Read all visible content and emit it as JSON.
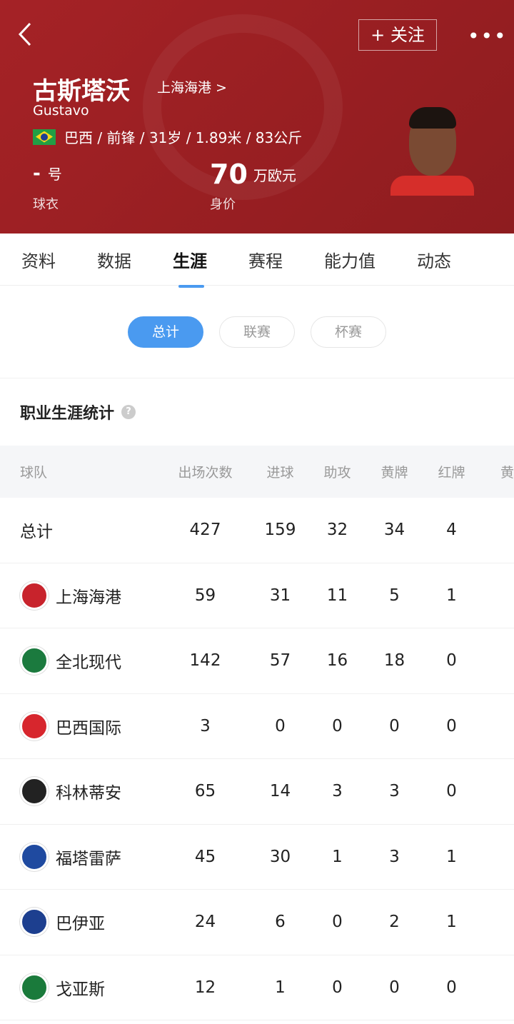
{
  "header": {
    "follow_label": "+ 关注",
    "more": "•••",
    "name": "古斯塔沃",
    "club": "上海海港 >",
    "name_en": "Gustavo",
    "info": "巴西 / 前锋 / 31岁 / 1.89米 / 83公斤",
    "nationality_flag": "brazil-flag",
    "shirt_number": "-",
    "shirt_unit": "号",
    "shirt_label": "球衣",
    "value": "70",
    "value_unit": "万欧元",
    "value_label": "身价",
    "bg_color": "#9c1f22"
  },
  "tabs": [
    {
      "label": "资料"
    },
    {
      "label": "数据"
    },
    {
      "label": "生涯",
      "active": true
    },
    {
      "label": "赛程"
    },
    {
      "label": "能力值"
    },
    {
      "label": "动态"
    }
  ],
  "filters": [
    {
      "label": "总计",
      "active": true
    },
    {
      "label": "联赛"
    },
    {
      "label": "杯赛"
    }
  ],
  "section_title": "职业生涯统计",
  "table": {
    "headers": [
      "球队",
      "出场次数",
      "进球",
      "助攻",
      "黄牌",
      "红牌",
      "黄"
    ],
    "rows": [
      {
        "team": "总计",
        "apps": "427",
        "goals": "159",
        "assists": "32",
        "yellow": "34",
        "red": "4"
      },
      {
        "team": "上海海港",
        "apps": "59",
        "goals": "31",
        "assists": "11",
        "yellow": "5",
        "red": "1",
        "color": "#c8232c"
      },
      {
        "team": "全北现代",
        "apps": "142",
        "goals": "57",
        "assists": "16",
        "yellow": "18",
        "red": "0",
        "color": "#1b7a3e"
      },
      {
        "team": "巴西国际",
        "apps": "3",
        "goals": "0",
        "assists": "0",
        "yellow": "0",
        "red": "0",
        "color": "#d7262d"
      },
      {
        "team": "科林蒂安",
        "apps": "65",
        "goals": "14",
        "assists": "3",
        "yellow": "3",
        "red": "0",
        "color": "#222222"
      },
      {
        "team": "福塔雷萨",
        "apps": "45",
        "goals": "30",
        "assists": "1",
        "yellow": "3",
        "red": "1",
        "color": "#1f4aa0"
      },
      {
        "team": "巴伊亚",
        "apps": "24",
        "goals": "6",
        "assists": "0",
        "yellow": "2",
        "red": "1",
        "color": "#1d3f8f"
      },
      {
        "team": "戈亚斯",
        "apps": "12",
        "goals": "1",
        "assists": "0",
        "yellow": "0",
        "red": "0",
        "color": "#1a7a3b"
      }
    ]
  }
}
